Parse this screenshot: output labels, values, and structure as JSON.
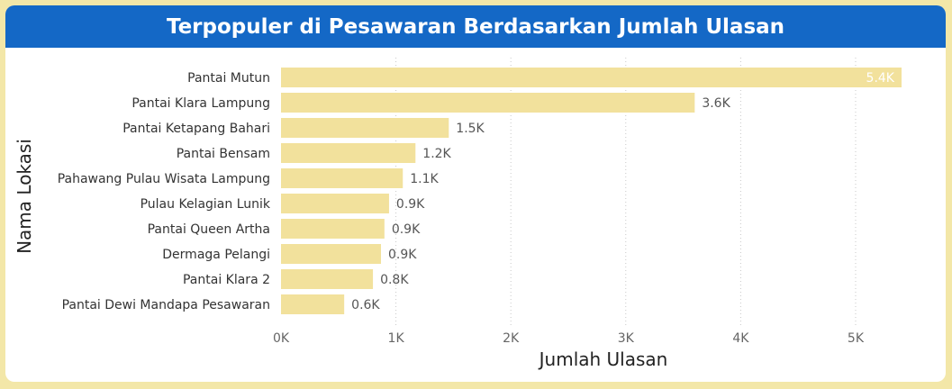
{
  "chart_data": {
    "type": "bar",
    "orientation": "horizontal",
    "title": "Terpopuler di Pesawaran Berdasarkan Jumlah Ulasan",
    "xlabel": "Jumlah Ulasan",
    "ylabel": "Nama Lokasi",
    "categories": [
      "Pantai Mutun",
      "Pantai Klara Lampung",
      "Pantai Ketapang Bahari",
      "Pantai Bensam",
      "Pahawang Pulau Wisata Lampung",
      "Pulau Kelagian Lunik",
      "Pantai Queen Artha",
      "Dermaga Pelangi",
      "Pantai Klara 2",
      "Pantai Dewi Mandapa Pesawaran"
    ],
    "values": [
      5400,
      3600,
      1460,
      1170,
      1060,
      940,
      900,
      870,
      800,
      550
    ],
    "data_labels": [
      "5.4K",
      "3.6K",
      "1.5K",
      "1.2K",
      "1.1K",
      "0.9K",
      "0.9K",
      "0.9K",
      "0.8K",
      "0.6K"
    ],
    "xlim": [
      0,
      5400
    ],
    "xticks": [
      0,
      1000,
      2000,
      3000,
      4000,
      5000
    ],
    "xtick_labels": [
      "0K",
      "1K",
      "2K",
      "3K",
      "4K",
      "5K"
    ],
    "grid": "vertical-dotted",
    "bar_color": "#f2e19c",
    "header_color": "#1468c6",
    "frame_color": "#f3e7a8"
  }
}
